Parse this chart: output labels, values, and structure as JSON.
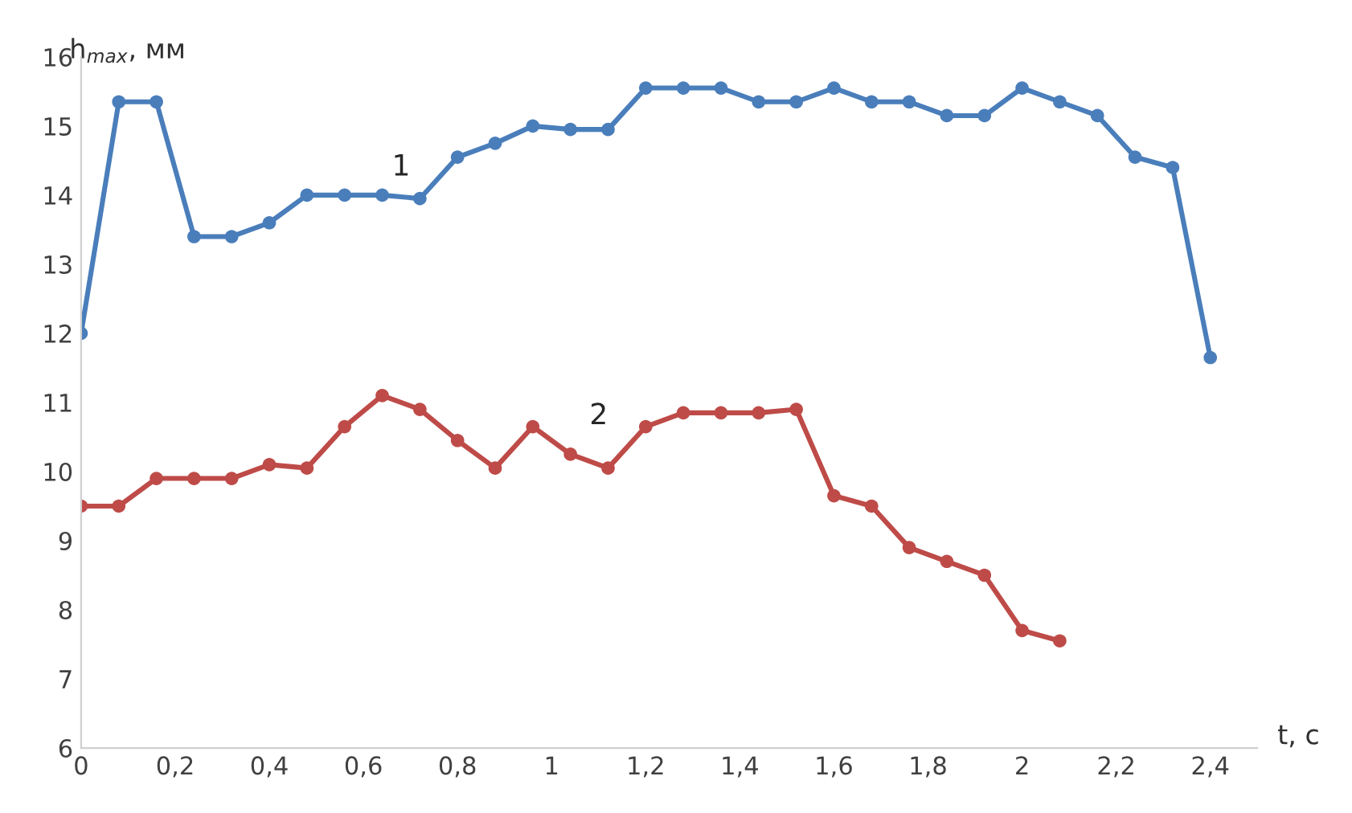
{
  "chart_data": {
    "type": "line",
    "xlabel": "t, с",
    "ylabel": "h$_{max}$, мм",
    "x": [
      0,
      0.08,
      0.16,
      0.24,
      0.32,
      0.4,
      0.48,
      0.56,
      0.64,
      0.72,
      0.8,
      0.88,
      0.96,
      1.04,
      1.12,
      1.2,
      1.28,
      1.36,
      1.44,
      1.52,
      1.6,
      1.68,
      1.76,
      1.84,
      1.92,
      2.0,
      2.08,
      2.16,
      2.24,
      2.32,
      2.4
    ],
    "series": [
      {
        "color": "#4a7ebb",
        "values": [
          12.0,
          15.35,
          15.35,
          13.4,
          13.4,
          13.6,
          14.0,
          14.0,
          14.0,
          13.95,
          14.55,
          14.75,
          15.0,
          14.95,
          14.95,
          15.55,
          15.55,
          15.55,
          15.35,
          15.35,
          15.55,
          15.35,
          15.35,
          15.15,
          15.15,
          15.55,
          15.35,
          15.15,
          14.55,
          14.4,
          11.65
        ]
      },
      {
        "color": "#be4b48",
        "values": [
          9.5,
          9.5,
          9.9,
          9.9,
          9.9,
          10.1,
          10.05,
          10.65,
          11.1,
          10.9,
          10.45,
          10.05,
          10.65,
          10.25,
          10.05,
          10.65,
          10.85,
          10.85,
          10.85,
          10.9,
          9.65,
          9.5,
          8.9,
          8.7,
          8.5,
          7.7,
          7.55,
          null,
          null,
          null,
          null
        ]
      }
    ],
    "annotations": [
      "1",
      "2"
    ],
    "xlim": [
      0,
      2.5
    ],
    "ylim": [
      6,
      16
    ],
    "xticks": [
      0,
      {
        "value": 0.2,
        "label": "0,2"
      },
      {
        "value": 0.4,
        "label": "0,4"
      },
      {
        "value": 0.6,
        "label": "0,6"
      },
      {
        "value": 0.8,
        "label": "0,8"
      },
      1,
      {
        "value": 1.2,
        "label": "1,2"
      },
      {
        "value": 1.4,
        "label": "1,4"
      },
      {
        "value": 1.6,
        "label": "1,6"
      },
      {
        "value": 1.8,
        "label": "1,8"
      },
      2,
      {
        "value": 2.2,
        "label": "2,2"
      },
      {
        "value": 2.4,
        "label": "2,4"
      }
    ],
    "yticks": [
      6,
      7,
      8,
      9,
      10,
      11,
      12,
      13,
      14,
      15,
      16
    ],
    "grid": false,
    "marker": "circle",
    "line_style": "solid",
    "legend": false
  }
}
